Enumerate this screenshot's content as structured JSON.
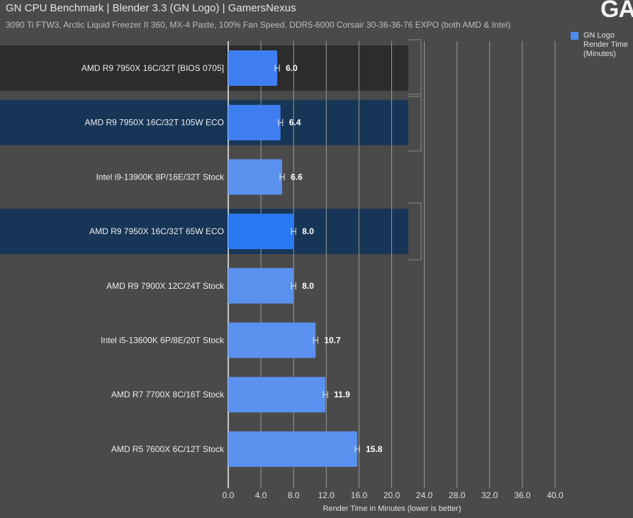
{
  "header": {
    "title": "GN CPU Benchmark | Blender 3.3 (GN Logo) | GamersNexus",
    "subtitle": "3090 Ti FTW3, Arctic Liquid Freezer II 360, MX-4 Paste, 100% Fan Speed, DDR5-6000 Corsair 30-36-36-76 EXPO (both AMD & Intel)",
    "logo_text": "GA"
  },
  "legend": {
    "label": "GN Logo Render Time (Minutes)",
    "color": "#4f8cf0"
  },
  "chart_data": {
    "type": "bar",
    "orientation": "horizontal",
    "categories": [
      "AMD R9 7950X 16C/32T [BIOS 0705]",
      "AMD R9 7950X 16C/32T 105W ECO",
      "Intel i9-13900K 8P/16E/32T Stock",
      "AMD R9 7950X 16C/32T 65W ECO",
      "AMD R9 7900X 12C/24T Stock",
      "Intel i5-13600K 6P/8E/20T Stock",
      "AMD R7 7700X 8C/16T Stock",
      "AMD R5 7600X 6C/12T Stock"
    ],
    "series": [
      {
        "name": "GN Logo Render Time (Minutes)",
        "values": [
          6.0,
          6.4,
          6.6,
          8.0,
          8.0,
          10.7,
          11.9,
          15.8
        ],
        "labels": [
          "6.0",
          "6.4",
          "6.6",
          "8.0",
          "8.0",
          "10.7",
          "11.9",
          "15.8"
        ]
      }
    ],
    "highlight": [
      "dark",
      "blue",
      "none",
      "blue",
      "none",
      "none",
      "none",
      "none"
    ],
    "bar_colors": [
      "#3f7ef0",
      "#3f7ef0",
      "#5a90ee",
      "#2a78f2",
      "#5a90ee",
      "#5a90ee",
      "#5a90ee",
      "#5a90ee"
    ],
    "highlight_colors": {
      "dark": "#2c2c2c",
      "blue": "#173556"
    },
    "xlim": [
      0,
      40
    ],
    "xticks": [
      "0.0",
      "4.0",
      "8.0",
      "12.0",
      "16.0",
      "20.0",
      "24.0",
      "28.0",
      "32.0",
      "36.0",
      "40.0"
    ],
    "xlabel": "Render Time in Minutes (lower is better)",
    "grid": true,
    "legend_position": "top-right"
  }
}
